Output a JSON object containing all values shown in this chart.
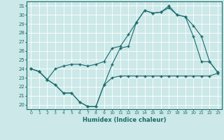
{
  "xlabel": "Humidex (Indice chaleur)",
  "background_color": "#cce8e8",
  "grid_color": "#ffffff",
  "line_color": "#1a6b6b",
  "xlim": [
    -0.5,
    23.5
  ],
  "ylim": [
    19.5,
    31.5
  ],
  "xticks": [
    0,
    1,
    2,
    3,
    4,
    5,
    6,
    7,
    8,
    9,
    10,
    11,
    12,
    13,
    14,
    15,
    16,
    17,
    18,
    19,
    20,
    21,
    22,
    23
  ],
  "yticks": [
    20,
    21,
    22,
    23,
    24,
    25,
    26,
    27,
    28,
    29,
    30,
    31
  ],
  "line1_x": [
    0,
    1,
    2,
    3,
    4,
    5,
    6,
    7,
    8,
    9,
    10,
    11,
    12,
    13,
    14,
    15,
    16,
    17,
    18,
    19,
    20,
    21,
    22,
    23
  ],
  "line1_y": [
    24,
    23.7,
    22.8,
    22.2,
    21.3,
    21.3,
    20.3,
    19.8,
    19.8,
    22.2,
    23.0,
    23.2,
    23.2,
    23.2,
    23.2,
    23.2,
    23.2,
    23.2,
    23.2,
    23.2,
    23.2,
    23.2,
    23.2,
    23.5
  ],
  "line2_x": [
    0,
    1,
    2,
    3,
    4,
    5,
    6,
    7,
    8,
    9,
    10,
    11,
    12,
    13,
    14,
    15,
    16,
    17,
    18,
    19,
    20,
    21,
    22,
    23
  ],
  "line2_y": [
    24,
    23.7,
    22.8,
    22.2,
    21.3,
    21.3,
    20.3,
    19.8,
    19.8,
    22.2,
    24.5,
    26.3,
    26.5,
    29.2,
    30.5,
    30.2,
    30.3,
    30.8,
    30.0,
    29.8,
    27.6,
    24.8,
    24.8,
    23.6
  ],
  "line3_x": [
    0,
    1,
    2,
    3,
    4,
    5,
    6,
    7,
    8,
    9,
    10,
    11,
    12,
    13,
    14,
    15,
    16,
    17,
    18,
    19,
    20,
    21,
    22,
    23
  ],
  "line3_y": [
    24,
    23.7,
    22.8,
    24.0,
    24.3,
    24.5,
    24.5,
    24.3,
    24.5,
    24.8,
    26.3,
    26.5,
    27.8,
    29.2,
    30.5,
    30.2,
    30.3,
    31.0,
    30.0,
    29.8,
    28.8,
    27.6,
    24.8,
    23.6
  ]
}
